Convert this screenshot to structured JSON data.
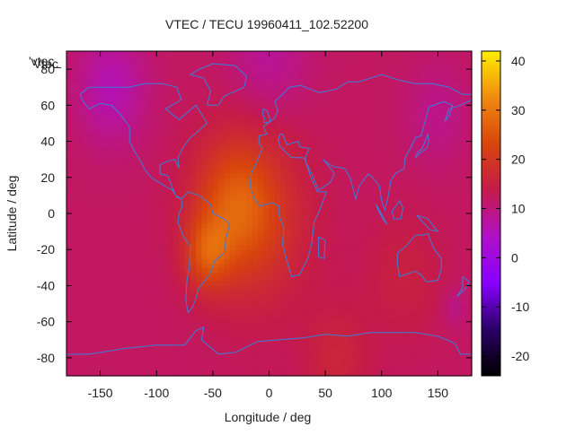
{
  "chart_data": {
    "type": "heatmap",
    "title": "VTEC / TECU 19960411_102.52200",
    "xlabel": "Longitude / deg",
    "ylabel": "Latitude / deg",
    "xlim": [
      -180,
      180
    ],
    "ylim": [
      -90,
      90
    ],
    "xticks": [
      -150,
      -100,
      -50,
      0,
      50,
      100,
      150
    ],
    "yticks": [
      -80,
      -60,
      -40,
      -20,
      0,
      20,
      40,
      60,
      80
    ],
    "colorbar": {
      "range": [
        -24,
        42
      ],
      "ticks": [
        -20,
        -10,
        0,
        10,
        20,
        30,
        40
      ],
      "palette": [
        "#000000",
        "#2a0066",
        "#8800ff",
        "#b010c8",
        "#c51a4a",
        "#d8450c",
        "#f08a10",
        "#ffee00"
      ]
    },
    "legend_text": "'vtec_",
    "legend_text_overlap": "Vtec",
    "field": {
      "background": 12,
      "blobs": [
        {
          "lon": -30,
          "lat": 5,
          "value": 23,
          "spread": 26
        },
        {
          "lon": -55,
          "lat": -22,
          "value": 22,
          "spread": 14
        },
        {
          "lon": -10,
          "lat": -5,
          "value": 18,
          "spread": 35
        },
        {
          "lon": 60,
          "lat": -80,
          "value": 16,
          "spread": 20
        },
        {
          "lon": 120,
          "lat": -35,
          "value": 15,
          "spread": 25
        },
        {
          "lon": -140,
          "lat": 70,
          "value": 6,
          "spread": 22
        },
        {
          "lon": 0,
          "lat": 88,
          "value": 8,
          "spread": 25
        },
        {
          "lon": 150,
          "lat": 55,
          "value": 9,
          "spread": 20
        },
        {
          "lon": 165,
          "lat": -52,
          "value": 9,
          "spread": 8
        }
      ]
    }
  }
}
